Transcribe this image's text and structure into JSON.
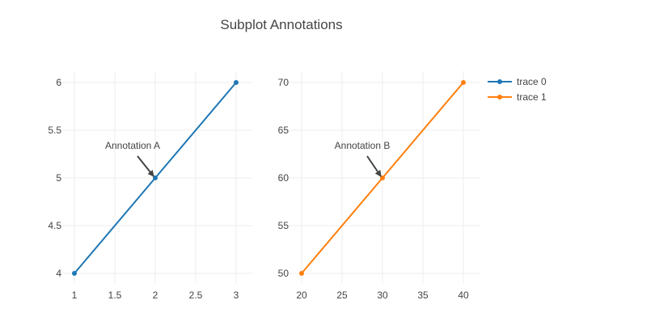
{
  "title": "Subplot Annotations",
  "chart_data": [
    {
      "type": "line",
      "series": [
        {
          "name": "trace 0",
          "color": "#1f77b4",
          "x": [
            1,
            2,
            3
          ],
          "y": [
            4,
            5,
            6
          ]
        }
      ],
      "xlim": [
        1,
        3
      ],
      "ylim": [
        4,
        6
      ],
      "xticks": [
        "1",
        "1.5",
        "2",
        "2.5",
        "3"
      ],
      "yticks": [
        "4",
        "4.5",
        "5",
        "5.5",
        "6"
      ],
      "annotation": {
        "text": "Annotation A",
        "x": 2,
        "y": 5
      },
      "grid": true
    },
    {
      "type": "line",
      "series": [
        {
          "name": "trace 1",
          "color": "#ff7f0e",
          "x": [
            20,
            30,
            40
          ],
          "y": [
            50,
            60,
            70
          ]
        }
      ],
      "xlim": [
        20,
        40
      ],
      "ylim": [
        50,
        70
      ],
      "xticks": [
        "20",
        "25",
        "30",
        "35",
        "40"
      ],
      "yticks": [
        "50",
        "55",
        "60",
        "65",
        "70"
      ],
      "annotation": {
        "text": "Annotation B",
        "x": 30,
        "y": 60
      },
      "grid": true
    }
  ],
  "legend": {
    "placement": "top-right",
    "items": [
      {
        "label": "trace 0",
        "color": "#1f77b4"
      },
      {
        "label": "trace 1",
        "color": "#ff7f0e"
      }
    ]
  }
}
